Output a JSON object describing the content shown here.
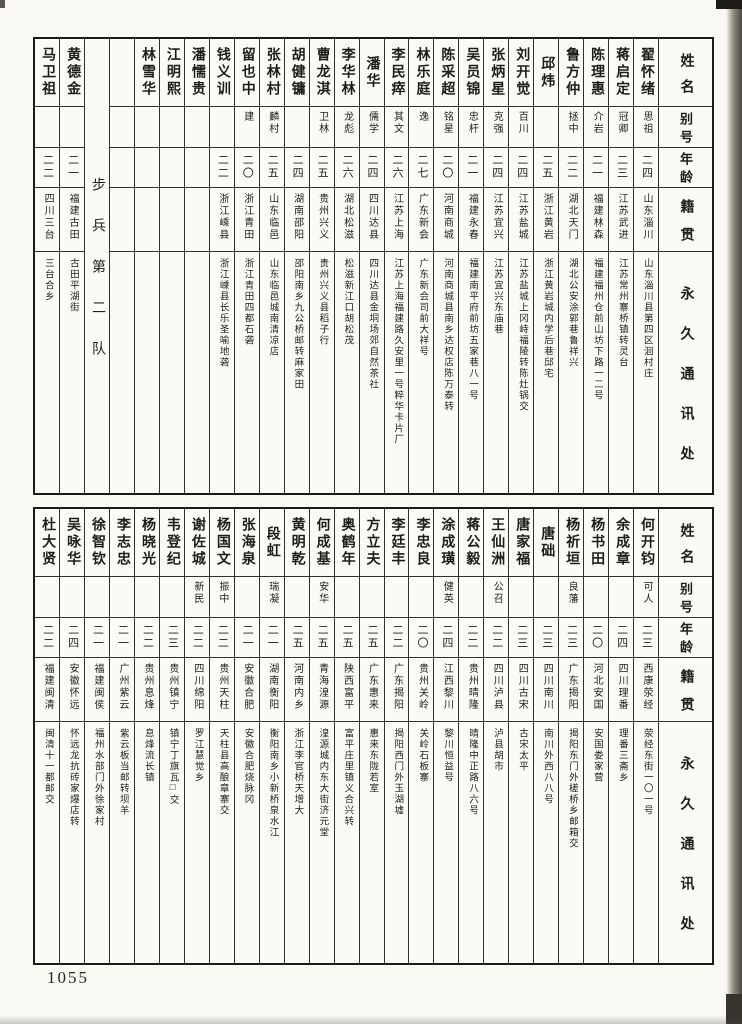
{
  "page": {
    "number": "1055"
  },
  "header_labels": {
    "name": "姓名",
    "alias": "别号",
    "age": "年龄",
    "native": "籍贯",
    "address": "永久通讯处"
  },
  "tables": [
    {
      "entries": [
        {
          "name": "翟怀绪",
          "alias": "思祖",
          "age": "二四",
          "native": "山东淄川",
          "address": "山东淄川县第四区洄村庄"
        },
        {
          "name": "蒋启定",
          "alias": "冠卿",
          "age": "二三",
          "native": "江苏武进",
          "address": "江苏常州寨桥镇转灵台"
        },
        {
          "name": "陈理惠",
          "alias": "介岩",
          "age": "二一",
          "native": "福建林森",
          "address": "福建福州仓前山坊下路一二号"
        },
        {
          "name": "鲁方仲",
          "alias": "拯中",
          "age": "二二",
          "native": "湖北天门",
          "address": "湖北公安涂郭巷鲁祥兴"
        },
        {
          "name": "邱炜",
          "alias": "",
          "age": "二五",
          "native": "浙江黄岩",
          "address": "浙江黄岩城内学后巷邱宅"
        },
        {
          "name": "刘开觉",
          "alias": "百川",
          "age": "二四",
          "native": "江苏盐城",
          "address": "江苏盐城上冈峙福陵转陈灶锅交"
        },
        {
          "name": "张炳星",
          "alias": "克强",
          "age": "二四",
          "native": "江苏宜兴",
          "address": "江苏宜兴东庙巷"
        },
        {
          "name": "吴员锦",
          "alias": "忠杆",
          "age": "二一",
          "native": "福建永春",
          "address": "福建南平府前坊五家巷八一号"
        },
        {
          "name": "陈采超",
          "alias": "铭星",
          "age": "二〇",
          "native": "河南商城",
          "address": "河南商城县南乡达权店陈万泰转"
        },
        {
          "name": "林乐庭",
          "alias": "逸",
          "age": "二七",
          "native": "广东新会",
          "address": "广东新会司前大祥号"
        },
        {
          "name": "李民瘁",
          "alias": "其文",
          "age": "二六",
          "native": "江苏上海",
          "address": "江苏上海福建路久安里一号粹华卡片厂"
        },
        {
          "name": "潘华",
          "alias": "儒学",
          "age": "二四",
          "native": "四川达县",
          "address": "四川达县金垌场郊自然茶社"
        },
        {
          "name": "李华林",
          "alias": "龙彪",
          "age": "二六",
          "native": "湖北松滋",
          "address": "松滋新江口胡松茂"
        },
        {
          "name": "曹龙淇",
          "alias": "卫林",
          "age": "二五",
          "native": "贵州兴义",
          "address": "贵州兴义县稻子行"
        },
        {
          "name": "胡健镛",
          "alias": "",
          "age": "二四",
          "native": "湖南邵阳",
          "address": "邵阳南乡九公桥邮转麻家田"
        },
        {
          "name": "张林村",
          "alias": "麟村",
          "age": "二五",
          "native": "山东临邑",
          "address": "山东临邑城南清凉店"
        },
        {
          "name": "留也中",
          "alias": "建",
          "age": "二〇",
          "native": "浙江青田",
          "address": "浙江青田四都石砻"
        },
        {
          "name": "钱义训",
          "alias": "",
          "age": "二二",
          "native": "浙江嵊县",
          "address": "浙江嵊县长乐圣喻地砻"
        },
        {
          "name": "潘懦贵",
          "alias": "",
          "age": "",
          "native": "",
          "address": ""
        },
        {
          "name": "江明熙",
          "alias": "",
          "age": "",
          "native": "",
          "address": ""
        },
        {
          "name": "林雪华",
          "alias": "",
          "age": "",
          "native": "",
          "address": ""
        },
        {
          "type": "empty"
        },
        {
          "type": "divider",
          "text": "步兵第二队"
        },
        {
          "name": "黄德金",
          "alias": "",
          "age": "二一",
          "native": "福建古田",
          "address": "古田平湖街"
        },
        {
          "name": "马卫祖",
          "alias": "",
          "age": "二二",
          "native": "四川三台",
          "address": "三台合乡"
        }
      ]
    },
    {
      "entries": [
        {
          "name": "何开钧",
          "alias": "可人",
          "age": "二三",
          "native": "西康荥经",
          "address": "荥经东街一〇一号"
        },
        {
          "name": "余成章",
          "alias": "",
          "age": "二四",
          "native": "四川理番",
          "address": "理番三斋乡"
        },
        {
          "name": "杨书田",
          "alias": "",
          "age": "二〇",
          "native": "河北安国",
          "address": "安国娄家营"
        },
        {
          "name": "杨祈垣",
          "alias": "良藩",
          "age": "二三",
          "native": "广东揭阳",
          "address": "揭阳东门外槎桥乡邮箱交"
        },
        {
          "name": "唐础",
          "alias": "",
          "age": "二三",
          "native": "四川南川",
          "address": "南川外西八八号"
        },
        {
          "name": "唐家福",
          "alias": "",
          "age": "二三",
          "native": "四川古宋",
          "address": "古宋太平"
        },
        {
          "name": "王仙洲",
          "alias": "公召",
          "age": "二二",
          "native": "四川泸县",
          "address": "泸县胡市"
        },
        {
          "name": "蒋公毅",
          "alias": "",
          "age": "二二",
          "native": "贵州晴隆",
          "address": "晴隆中正路八六号"
        },
        {
          "name": "涂成璜",
          "alias": "健英",
          "age": "二四",
          "native": "江西黎川",
          "address": "黎川恒益号"
        },
        {
          "name": "李忠良",
          "alias": "",
          "age": "二〇",
          "native": "贵州关岭",
          "address": "关岭石板寨"
        },
        {
          "name": "李廷丰",
          "alias": "",
          "age": "二二",
          "native": "广东揭阳",
          "address": "揭阳西门外玉湖墟"
        },
        {
          "name": "方立夫",
          "alias": "",
          "age": "二五",
          "native": "广东惠来",
          "address": "惠来东陇若室"
        },
        {
          "name": "奥鹤年",
          "alias": "",
          "age": "二五",
          "native": "陕西富平",
          "address": "富平庄里镇义合兴转"
        },
        {
          "name": "何成基",
          "alias": "安华",
          "age": "二五",
          "native": "青海湟源",
          "address": "湟源城内东大街济元堂"
        },
        {
          "name": "黄明乾",
          "alias": "",
          "age": "二五",
          "native": "河南内乡",
          "address": "浙江李官桥天增大"
        },
        {
          "name": "段虹",
          "alias": "瑞凝",
          "age": "二一",
          "native": "湖南衡阳",
          "address": "衡阳南乡小新桥泉水江"
        },
        {
          "name": "张海泉",
          "alias": "",
          "age": "二一",
          "native": "安徽合肥",
          "address": "安徽合肥烧脉冈"
        },
        {
          "name": "杨国文",
          "alias": "振中",
          "age": "二二",
          "native": "贵州天柱",
          "address": "天柱县高酿章寨交"
        },
        {
          "name": "谢佐城",
          "alias": "新民",
          "age": "二二",
          "native": "四川绵阳",
          "address": "罗江慧觉乡"
        },
        {
          "name": "韦登纪",
          "alias": "",
          "age": "二三",
          "native": "贵州镇宁",
          "address": "镇宁丁旗瓦□交"
        },
        {
          "name": "杨晓光",
          "alias": "",
          "age": "二二",
          "native": "贵州息烽",
          "address": "息烽流长镇"
        },
        {
          "name": "李志忠",
          "alias": "",
          "age": "二一",
          "native": "广州紫云",
          "address": "紫云板当邮转坝羊"
        },
        {
          "name": "徐智钦",
          "alias": "",
          "age": "二一",
          "native": "福建闽侯",
          "address": "福州水部门外徐家村"
        },
        {
          "name": "吴咏华",
          "alias": "",
          "age": "二四",
          "native": "安徽怀远",
          "address": "怀远龙抗砖家爆店转"
        },
        {
          "name": "杜大贤",
          "alias": "",
          "age": "二二",
          "native": "福建闽清",
          "address": "闽清十一都邮交"
        }
      ]
    }
  ]
}
